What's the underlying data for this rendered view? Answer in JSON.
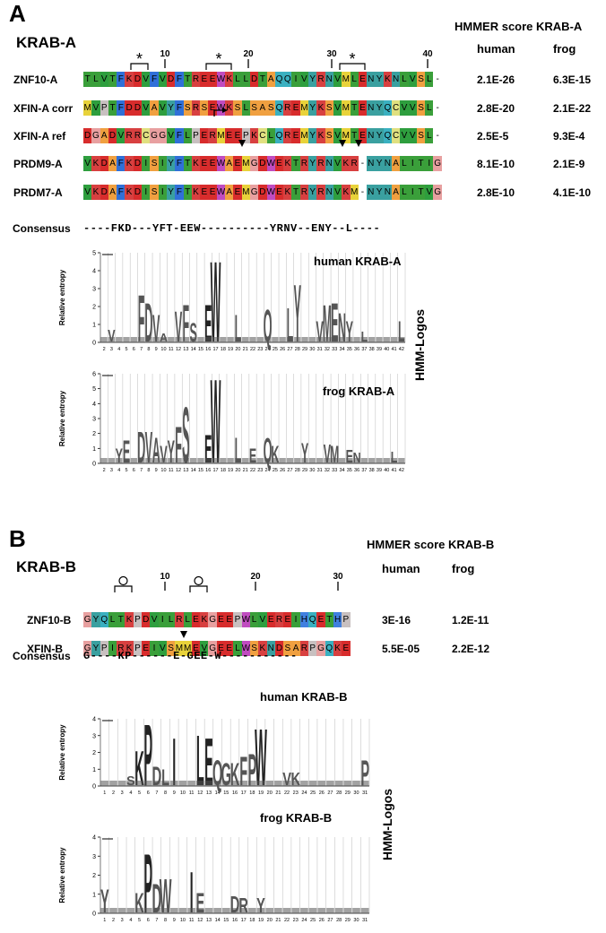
{
  "panel_a": {
    "letter": "A",
    "block_title": "KRAB-A",
    "score_title": "HMMER score KRAB-A",
    "score_cols": [
      "human",
      "frog"
    ],
    "ruler_numbers": [
      "10",
      "20",
      "30",
      "40"
    ],
    "asterisk": "*",
    "rows": [
      {
        "name": "ZNF10-A",
        "seq": "TLVTFKDVFVDFTREEWKLLDTAQQIVYRNVMLENYKNLVSL-",
        "human": "2.1E-26",
        "frog": "6.3E-15"
      },
      {
        "name": "XFIN-A corr",
        "seq": "MVPTFDDVAVYFSRSEWKSLSASQREMYKSVMTENYQCVVSL-",
        "human": "2.8E-20",
        "frog": "2.1E-22"
      },
      {
        "name": "XFIN-A ref",
        "seq": "DGADVRRCGGVFLPERMEEPKCLQREMYKSVMTENYQCVVSL-",
        "human": "2.5E-5",
        "frog": "9.3E-4"
      },
      {
        "name": "PRDM9-A",
        "seq": "VKDAFKDISIYFTKEEWAEMGDWEKTRYRNVKR-NYNALITIG",
        "human": "8.1E-10",
        "frog": "2.1E-9"
      },
      {
        "name": "PRDM7-A",
        "seq": "VKDAFKDISIYFTKEEWAEMGDWEKTRYRNVKM-NYNALITVG",
        "human": "2.8E-10",
        "frog": "4.1E-10"
      }
    ],
    "consensus_label": "Consensus",
    "consensus": "----FKD---YFT-EEW----------YRNV--ENY--L----",
    "logo_axis_label": "Relative entropy",
    "logos": [
      {
        "title": "human KRAB-A",
        "ymax": 5,
        "yticks": [
          "0",
          "1",
          "2",
          "3",
          "4",
          "5"
        ],
        "x_ticks": [
          "2",
          "3",
          "4",
          "5",
          "6",
          "7",
          "8",
          "9",
          "10",
          "11",
          "12",
          "13",
          "14",
          "15",
          "16",
          "17",
          "18",
          "19",
          "20",
          "21",
          "22",
          "23",
          "24",
          "25",
          "26",
          "27",
          "28",
          "29",
          "30",
          "31",
          "32",
          "33",
          "34",
          "35",
          "36",
          "37",
          "38",
          "39",
          "40",
          "41",
          "42"
        ],
        "letters": [
          "V",
          "F",
          "D",
          "V",
          "A",
          "V",
          "F",
          "S",
          "E",
          "W",
          "L",
          "Q",
          "L",
          "Y",
          "V",
          "M",
          "E",
          "N",
          "Y",
          "L",
          "L"
        ]
      },
      {
        "title": "frog KRAB-A",
        "ymax": 6,
        "yticks": [
          "0",
          "1",
          "2",
          "3",
          "4",
          "5",
          "6"
        ],
        "x_ticks": [
          "2",
          "3",
          "4",
          "5",
          "6",
          "7",
          "8",
          "9",
          "10",
          "11",
          "12",
          "13",
          "14",
          "15",
          "16",
          "17",
          "18",
          "19",
          "20",
          "21",
          "22",
          "23",
          "24",
          "25",
          "26",
          "27",
          "28",
          "29",
          "30",
          "31",
          "32",
          "33",
          "34",
          "35",
          "36",
          "37",
          "38",
          "39",
          "40",
          "41",
          "42"
        ],
        "letters": [
          "Y",
          "E",
          "D",
          "V",
          "A",
          "V",
          "Y",
          "F",
          "S",
          "E",
          "W",
          "L",
          "E",
          "Q",
          "K",
          "Y",
          "V",
          "M",
          "E",
          "N",
          "L"
        ]
      }
    ],
    "side_label": "HMM-Logos"
  },
  "panel_b": {
    "letter": "B",
    "block_title": "KRAB-B",
    "score_title": "HMMER score KRAB-B",
    "score_cols": [
      "human",
      "frog"
    ],
    "ruler_numbers": [
      "10",
      "20",
      "30"
    ],
    "circle": "O",
    "rows": [
      {
        "name": "ZNF10-B",
        "seq": "GYQLTKPDVILRLEKGEEPWLVEREIHQETHP",
        "human": "3E-16",
        "frog": "1.2E-11"
      },
      {
        "name": "XFIN-B",
        "seq": "GYPIRKPEIVSMMEVGEELWSKNDSARPGQKE",
        "human": "5.5E-05",
        "frog": "2.2E-12"
      }
    ],
    "consensus_label": "Consensus",
    "consensus": "G----KP------E-GEE-W-----------",
    "logo_axis_label": "Relative entropy",
    "logos": [
      {
        "title": "human KRAB-B",
        "ymax": 4,
        "yticks": [
          "0",
          "1",
          "2",
          "3",
          "4"
        ],
        "x_ticks": [
          "1",
          "2",
          "3",
          "4",
          "5",
          "6",
          "7",
          "8",
          "9",
          "10",
          "11",
          "12",
          "13",
          "14",
          "15",
          "16",
          "17",
          "18",
          "19",
          "20",
          "21",
          "22",
          "23",
          "24",
          "25",
          "26",
          "27",
          "28",
          "29",
          "30",
          "31"
        ],
        "letters": [
          "S",
          "K",
          "P",
          "D",
          "L",
          "I",
          "L",
          "E",
          "Q",
          "G",
          "K",
          "F",
          "P",
          "W",
          "V",
          "K",
          "P"
        ]
      },
      {
        "title": "frog KRAB-B",
        "ymax": 4,
        "yticks": [
          "0",
          "1",
          "2",
          "3",
          "4"
        ],
        "x_ticks": [
          "1",
          "2",
          "3",
          "4",
          "5",
          "6",
          "7",
          "8",
          "9",
          "10",
          "11",
          "12",
          "13",
          "14",
          "15",
          "16",
          "17",
          "18",
          "19",
          "20",
          "21",
          "22",
          "23",
          "24",
          "25",
          "26",
          "27",
          "28",
          "29",
          "30",
          "31"
        ],
        "letters": [
          "Y",
          "K",
          "P",
          "D",
          "W",
          "I",
          "E",
          "D",
          "R",
          "Y"
        ]
      }
    ],
    "side_label": "HMM-Logos"
  },
  "colors": {
    "A": "#f0a040",
    "V": "#2e9e3e",
    "L": "#3a9f3a",
    "I": "#3a9f3a",
    "M": "#e8d23a",
    "F": "#3070d8",
    "W": "#c04cc0",
    "Y": "#3aa0a0",
    "K": "#d84040",
    "R": "#d84040",
    "D": "#d82c2c",
    "E": "#d82c2c",
    "T": "#3a9f3a",
    "S": "#f0a040",
    "N": "#3aa0a0",
    "Q": "#3ab0c0",
    "G": "#e8a0a0",
    "P": "#c8c0c0",
    "C": "#e0e080",
    "H": "#4080e0",
    "-": "#ffffff"
  }
}
